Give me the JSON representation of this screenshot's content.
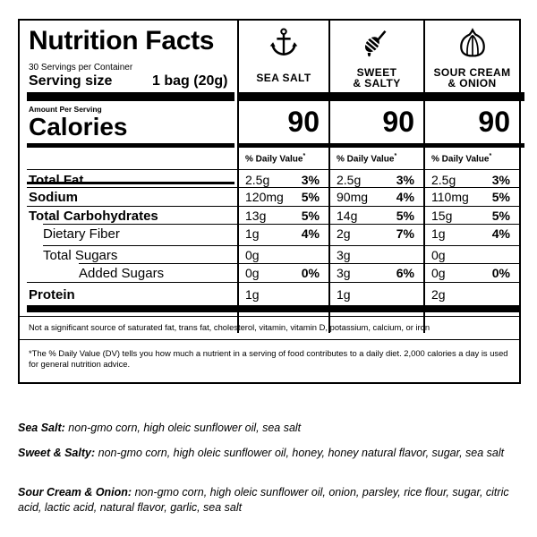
{
  "label": {
    "title": "Nutrition Facts",
    "servings": "30 Servings per Container",
    "serving_size_label": "Serving size",
    "serving_size_value": "1 bag (20g)",
    "amount_per_serving": "Amount Per Serving",
    "calories_label": "Calories",
    "dv_header": "% Daily Value",
    "dv_star": "*",
    "nutrients": [
      {
        "name": "Total Fat",
        "bold": true
      },
      {
        "name": "Sodium",
        "bold": true
      },
      {
        "name": "Total Carbohydrates",
        "bold": true
      },
      {
        "name": "Dietary Fiber",
        "bold": false
      },
      {
        "name": "Total Sugars",
        "bold": false
      },
      {
        "name": "Added Sugars",
        "bold": false
      },
      {
        "name": "Protein",
        "bold": true
      }
    ],
    "flavors": [
      {
        "icon": "anchor-icon",
        "name_line1": "SEA SALT",
        "name_line2": "",
        "calories": "90",
        "values": [
          {
            "amount": "2.5g",
            "dv": "3%"
          },
          {
            "amount": "120mg",
            "dv": "5%"
          },
          {
            "amount": "13g",
            "dv": "5%"
          },
          {
            "amount": "1g",
            "dv": "4%"
          },
          {
            "amount": "0g",
            "dv": ""
          },
          {
            "amount": "0g",
            "dv": "0%"
          },
          {
            "amount": "1g",
            "dv": ""
          }
        ]
      },
      {
        "icon": "honey-dipper-icon",
        "name_line1": "SWEET",
        "name_line2": "& SALTY",
        "calories": "90",
        "values": [
          {
            "amount": "2.5g",
            "dv": "3%"
          },
          {
            "amount": "90mg",
            "dv": "4%"
          },
          {
            "amount": "14g",
            "dv": "5%"
          },
          {
            "amount": "2g",
            "dv": "7%"
          },
          {
            "amount": "3g",
            "dv": ""
          },
          {
            "amount": "3g",
            "dv": "6%"
          },
          {
            "amount": "1g",
            "dv": ""
          }
        ]
      },
      {
        "icon": "onion-icon",
        "name_line1": "SOUR CREAM",
        "name_line2": "& ONION",
        "calories": "90",
        "values": [
          {
            "amount": "2.5g",
            "dv": "3%"
          },
          {
            "amount": "110mg",
            "dv": "5%"
          },
          {
            "amount": "15g",
            "dv": "5%"
          },
          {
            "amount": "1g",
            "dv": "4%"
          },
          {
            "amount": "0g",
            "dv": ""
          },
          {
            "amount": "0g",
            "dv": "0%"
          },
          {
            "amount": "2g",
            "dv": ""
          }
        ]
      }
    ],
    "footnote_not_significant": "Not a significant source of saturated fat, trans fat, cholesterol, vitamin, vitamin D, potassium, calcium, or iron",
    "footnote_dv": "*The % Daily Value (DV) tells you how much a nutrient in a serving of food contributes to a daily diet. 2,000 calories a day is used for general nutrition advice."
  },
  "ingredients": [
    {
      "name": "Sea Salt:",
      "text": " non-gmo corn, high oleic sunflower oil, sea salt"
    },
    {
      "name": "Sweet & Salty:",
      "text": " non-gmo corn, high oleic sunflower oil, honey, honey natural flavor, sugar, sea salt"
    },
    {
      "name": "Sour Cream & Onion:",
      "text": " non-gmo corn, high oleic sunflower oil, onion, parsley, rice flour, sugar, citric acid, lactic acid, natural flavor, garlic, sea salt"
    }
  ]
}
